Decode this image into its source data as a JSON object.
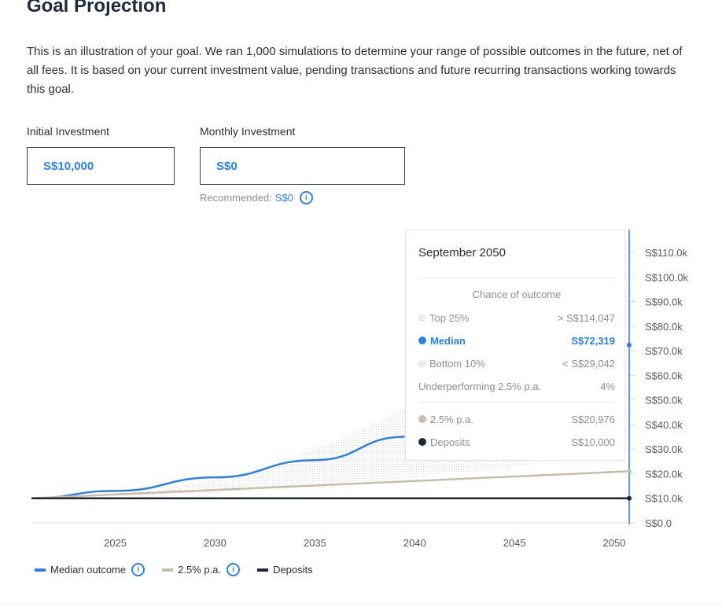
{
  "header": {
    "title": "Goal Projection",
    "description": "This is an illustration of your goal. We ran 1,000 simulations to determine your range of possible outcomes in the future, net of all fees. It is based on your current investment value, pending transactions and future recurring transactions working towards this goal."
  },
  "inputs": {
    "initial": {
      "label": "Initial Investment",
      "value": "S$10,000"
    },
    "monthly": {
      "label": "Monthly Investment",
      "value": "S$0"
    },
    "recommended_label": "Recommended:",
    "recommended_value": "S$0"
  },
  "colors": {
    "median": "#2f80d8",
    "rate": "#c9bcaa",
    "deposits": "#1e2a3a",
    "cursor": "#2f80d8"
  },
  "tooltip": {
    "title": "September 2050",
    "subtitle": "Chance of outcome",
    "rows": [
      {
        "label": "Top 25%",
        "value": "> S$114,047"
      },
      {
        "label": "Median",
        "value": "S$72,319"
      },
      {
        "label": "Bottom 10%",
        "value": "< S$29,042"
      },
      {
        "label": "Underperforming 2.5% p.a.",
        "value": "4%"
      },
      {
        "label": "2.5% p.a.",
        "value": "S$20,976"
      },
      {
        "label": "Deposits",
        "value": "S$10,000"
      }
    ]
  },
  "legend": {
    "median": "Median outcome",
    "rate": "2.5% p.a.",
    "deposits": "Deposits"
  },
  "chart_data": {
    "type": "line",
    "x_ticks": [
      "2025",
      "2030",
      "2035",
      "2040",
      "2045",
      "2050"
    ],
    "y_ticks": [
      "S$0.0",
      "S$10.0k",
      "S$20.0k",
      "S$30.0k",
      "S$40.0k",
      "S$50.0k",
      "S$60.0k",
      "S$70.0k",
      "S$80.0k",
      "S$90.0k",
      "S$100.0k",
      "S$110.0k"
    ],
    "xlim": [
      2020.8,
      2050.75
    ],
    "ylim": [
      0,
      110000
    ],
    "cursor_x": 2050.75,
    "series": [
      {
        "name": "Median outcome",
        "x": [
          2020.8,
          2025,
          2030,
          2035,
          2039.5
        ],
        "values": [
          10000,
          13000,
          18500,
          25500,
          35000
        ]
      },
      {
        "name": "2.5% p.a.",
        "x": [
          2020.8,
          2050.75
        ],
        "values": [
          10000,
          20976
        ]
      },
      {
        "name": "Deposits",
        "x": [
          2020.8,
          2050.75
        ],
        "values": [
          10000,
          10000
        ]
      }
    ],
    "band": {
      "x": [
        2020.8,
        2030,
        2040,
        2050.75
      ],
      "upper": [
        10000,
        24000,
        50000,
        114047
      ],
      "lower": [
        10000,
        11000,
        15000,
        29042
      ]
    }
  }
}
